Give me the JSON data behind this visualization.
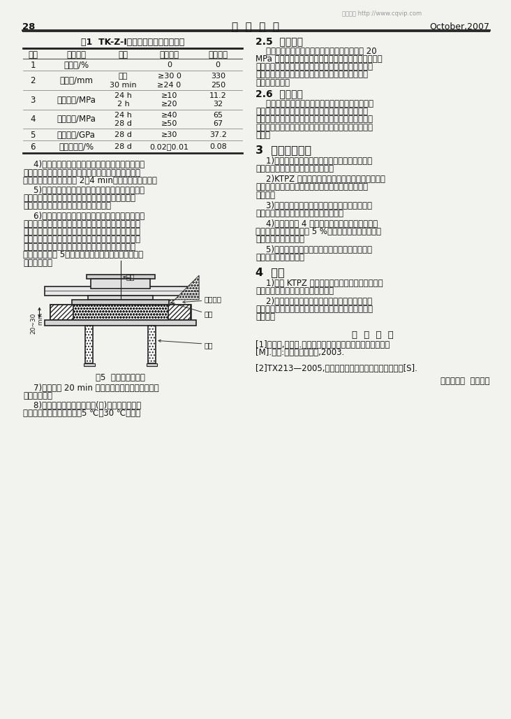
{
  "page_num": "28",
  "header_title": "铁  道  建  筑",
  "header_date": "October,2007",
  "watermark": "维普资讯 http://www.cqvip.com",
  "table_title": "表1  TK-Z-Ⅰ型灸浆材料主要技术性能",
  "table_headers": [
    "序列",
    "检验项目",
    "时间",
    "质量指标",
    "检验结果"
  ],
  "table_rows": [
    [
      "1",
      "泋水率/%",
      "",
      "0",
      "0"
    ],
    [
      "2",
      "流动度/mm",
      "初始\n30 min",
      "≥30 0\n≥24 0",
      "330\n250"
    ],
    [
      "3",
      "抗折强度/MPa",
      "24 h\n2 h",
      "≥10\n≥20",
      "11.2\n32"
    ],
    [
      "4",
      "抗压强度/MPa",
      "24 h\n28 d",
      "≥40\n≥50",
      "65\n67"
    ],
    [
      "5",
      "弹性模量/GPa",
      "28 d",
      "≥30",
      "37.2"
    ],
    [
      "6",
      "自由膨胀率/%",
      "28 d",
      "0.02～0.01",
      "0.08"
    ]
  ],
  "fig5_caption": "图5  支座灸浆示意图",
  "section25_title": "2.5  尾工处理",
  "section26_title": "2.6  检查验收",
  "section3_title": "3  施工质量控制",
  "section4_title": "4  结语",
  "ref_title": "参  考  文  献",
  "editor": "（责任审编  王天威）",
  "bg_color": "#f2f2ee",
  "text_color": "#111111",
  "line_color": "#222222"
}
